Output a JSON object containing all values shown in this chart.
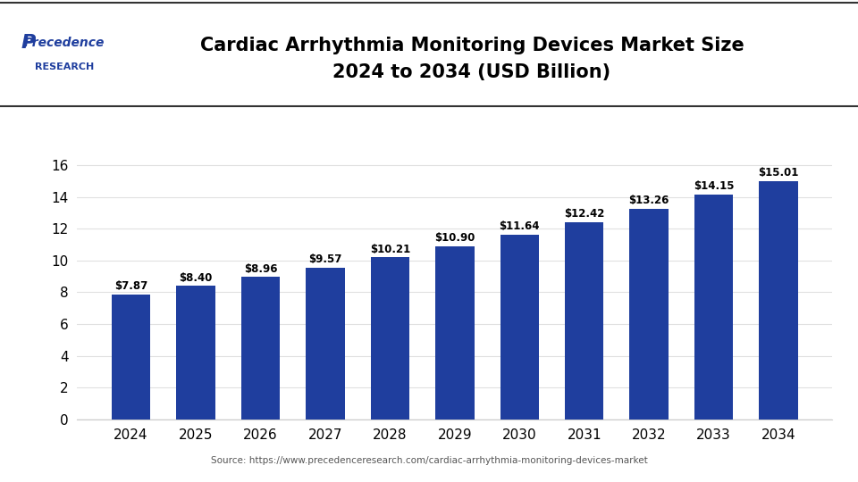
{
  "title_line1": "Cardiac Arrhythmia Monitoring Devices Market Size",
  "title_line2": "2024 to 2034 (USD Billion)",
  "years": [
    2024,
    2025,
    2026,
    2027,
    2028,
    2029,
    2030,
    2031,
    2032,
    2033,
    2034
  ],
  "values": [
    7.87,
    8.4,
    8.96,
    9.57,
    10.21,
    10.9,
    11.64,
    12.42,
    13.26,
    14.15,
    15.01
  ],
  "bar_color": "#1f3e9e",
  "yticks": [
    0,
    2,
    4,
    6,
    8,
    10,
    12,
    14,
    16
  ],
  "ylim": [
    0,
    17
  ],
  "source_text": "Source: https://www.precedenceresearch.com/cardiac-arrhythmia-monitoring-devices-market",
  "bg_color": "#ffffff",
  "grid_color": "#e0e0e0",
  "label_color": "#000000",
  "title_color": "#000000",
  "bar_label_prefix": "$",
  "logo_precedence": "Precedence",
  "logo_research": "RESEARCH",
  "logo_color": "#1f3e9e"
}
